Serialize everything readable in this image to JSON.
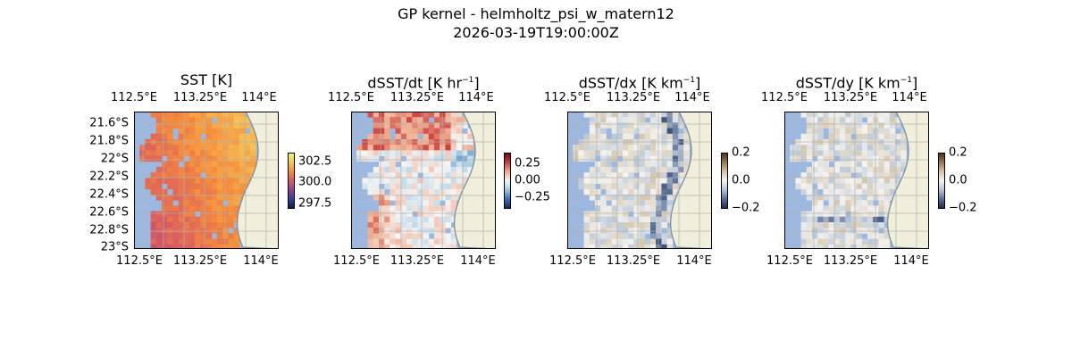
{
  "figure": {
    "title_line1": "GP kernel - helmholtz_psi_w_matern12",
    "title_line2": "2026-03-19T19:00:00Z"
  },
  "colors": {
    "land": "#efefdb",
    "no_data_ocean": "#9db8e0",
    "coastline": "#7f8c9a",
    "grid": "#b0b0b0"
  },
  "lon_ticks": [
    "112.5°E",
    "113.25°E",
    "114°E"
  ],
  "lat_ticks": [
    "21.6°S",
    "21.8°S",
    "22°S",
    "22.2°S",
    "22.4°S",
    "22.6°S",
    "22.8°S",
    "23°S"
  ],
  "panels": [
    {
      "id": "sst",
      "title_main": "SST [K]",
      "title_sup": "",
      "colormap": "thermal",
      "colorbar_ticks": [
        "302.5",
        "300.0",
        "297.5"
      ],
      "colorbar_values": [
        302.5,
        300.0,
        297.5
      ],
      "colorbar_range": [
        297.0,
        303.5
      ],
      "show_lat_ticks": true
    },
    {
      "id": "dsst-dt",
      "title_main": "dSST/dt [K hr",
      "title_sup": "−1",
      "title_end": "]",
      "colormap": "diverging-red-blue",
      "colorbar_ticks": [
        "0.25",
        "0.00",
        "−0.25"
      ],
      "colorbar_values": [
        0.25,
        0.0,
        -0.25
      ],
      "colorbar_range": [
        -0.4,
        0.4
      ],
      "show_lat_ticks": false
    },
    {
      "id": "dsst-dx",
      "title_main": "dSST/dx [K km",
      "title_sup": "−1",
      "title_end": "]",
      "colormap": "diverging-brown-blue",
      "colorbar_ticks": [
        "0.2",
        "0.0",
        "−0.2"
      ],
      "colorbar_values": [
        0.2,
        0.0,
        -0.2
      ],
      "colorbar_range": [
        -0.2,
        0.2
      ],
      "show_lat_ticks": false
    },
    {
      "id": "dsst-dy",
      "title_main": "dSST/dy [K km",
      "title_sup": "−1",
      "title_end": "]",
      "colormap": "diverging-brown-blue",
      "colorbar_ticks": [
        "0.2",
        "0.0",
        "−0.2"
      ],
      "colorbar_values": [
        0.2,
        0.0,
        -0.2
      ],
      "colorbar_range": [
        -0.2,
        0.2
      ],
      "show_lat_ticks": false
    }
  ]
}
